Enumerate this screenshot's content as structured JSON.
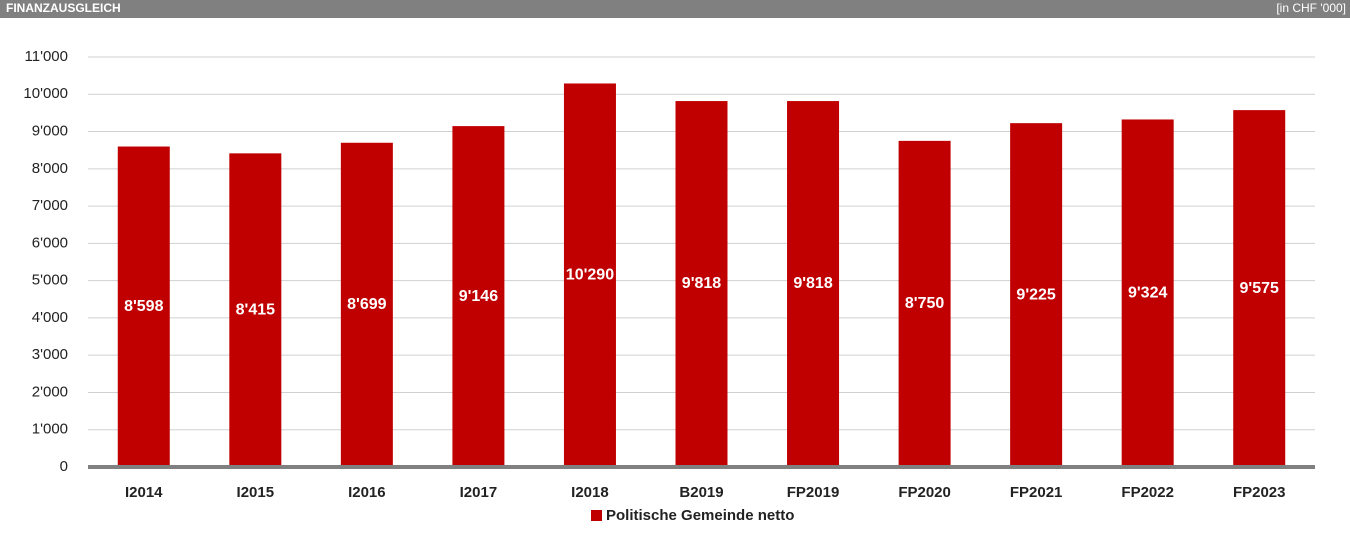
{
  "chart_data": {
    "type": "bar",
    "title": "FINANZAUSGLEICH",
    "unit_label": "[in CHF '000]",
    "categories": [
      "I2014",
      "I2015",
      "I2016",
      "I2017",
      "I2018",
      "B2019",
      "FP2019",
      "FP2020",
      "FP2021",
      "FP2022",
      "FP2023"
    ],
    "series": [
      {
        "name": "Politische Gemeinde netto",
        "color": "#c00000",
        "values": [
          8598,
          8415,
          8699,
          9146,
          10290,
          9818,
          9818,
          8750,
          9225,
          9324,
          9575
        ],
        "value_labels": [
          "8'598",
          "8'415",
          "8'699",
          "9'146",
          "10'290",
          "9'818",
          "9'818",
          "8'750",
          "9'225",
          "9'324",
          "9'575"
        ]
      }
    ],
    "ylim": [
      0,
      11000
    ],
    "yticks": [
      0,
      {
        "value": 1000,
        "label": "1'000"
      },
      {
        "value": 2000,
        "label": "2'000"
      },
      {
        "value": 3000,
        "label": "3'000"
      },
      {
        "value": 4000,
        "label": "4'000"
      },
      {
        "value": 5000,
        "label": "5'000"
      },
      {
        "value": 6000,
        "label": "6'000"
      },
      {
        "value": 7000,
        "label": "7'000"
      },
      {
        "value": 8000,
        "label": "8'000"
      },
      {
        "value": 9000,
        "label": "9'000"
      },
      {
        "value": 10000,
        "label": "10'000"
      },
      {
        "value": 11000,
        "label": "11'000"
      }
    ],
    "grid": true,
    "legend": "bottom"
  }
}
